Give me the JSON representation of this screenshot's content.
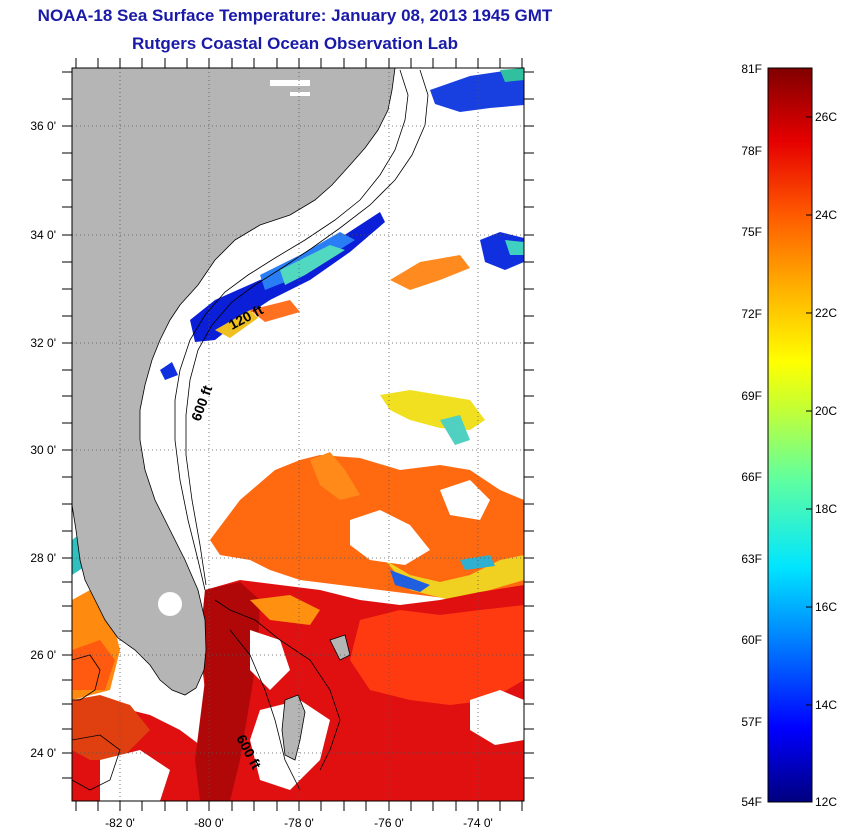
{
  "title": {
    "line1": "NOAA-18 Sea Surface Temperature:  January 08, 2013 1945 GMT",
    "line2": "Rutgers Coastal Ocean Observation Lab"
  },
  "map": {
    "lat_labels": [
      "36 0'",
      "34 0'",
      "32 0'",
      "30 0'",
      "28 0'",
      "26 0'",
      "24 0'"
    ],
    "lon_labels": [
      "-82 0'",
      "-80 0'",
      "-78 0'",
      "-76 0'",
      "-74 0'"
    ],
    "isobath_labels": [
      "120 ft",
      "600 ft",
      "600 ft"
    ],
    "colors": {
      "land": "#b5b5b5",
      "no_data": "#ffffff",
      "grid": "#555555"
    }
  },
  "colorbar": {
    "fahrenheit_labels": [
      "81F",
      "78F",
      "75F",
      "72F",
      "69F",
      "66F",
      "63F",
      "60F",
      "57F",
      "54F"
    ],
    "celsius_labels": [
      "26C",
      "24C",
      "22C",
      "20C",
      "18C",
      "16C",
      "14C",
      "12C"
    ],
    "colors": [
      "#00007f",
      "#0000ff",
      "#0080ff",
      "#00e5ff",
      "#60ff9f",
      "#c8ff30",
      "#ffff00",
      "#ffb000",
      "#ff5a00",
      "#e60000",
      "#800000"
    ]
  }
}
